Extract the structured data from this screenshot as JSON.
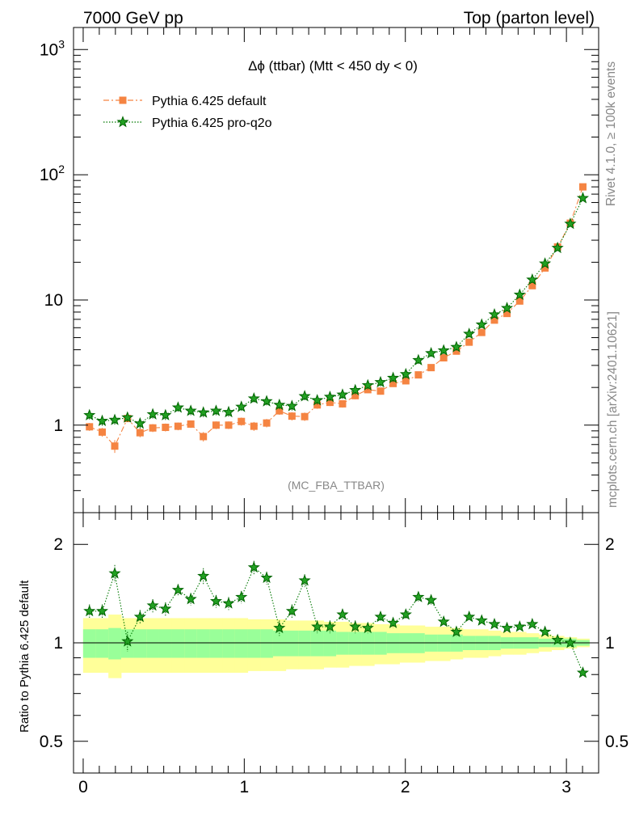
{
  "header": {
    "left": "7000 GeV pp",
    "right": "Top (parton level)"
  },
  "side_labels": {
    "top": "Rivet 4.1.0, ≥ 100k events",
    "bottom": "mcplots.cern.ch [arXiv:2401.10621]"
  },
  "chart_data": [
    {
      "type": "scatter",
      "panel": "main",
      "title": "Δϕ (ttbar) (Mtt < 450 dy < 0)",
      "watermark": "(MC_FBA_TTBAR)",
      "yscale": "log",
      "xlim": [
        -0.06,
        3.2
      ],
      "ylim": [
        0.2,
        1500
      ],
      "yticks": [
        {
          "value": 1000,
          "label": "10",
          "exp": "3"
        },
        {
          "value": 100,
          "label": "10",
          "exp": "2"
        },
        {
          "value": 10,
          "label": "10",
          "exp": ""
        },
        {
          "value": 1,
          "label": "1",
          "exp": ""
        }
      ],
      "legend_position": "top-left",
      "x": [
        0.039,
        0.118,
        0.196,
        0.275,
        0.353,
        0.432,
        0.511,
        0.589,
        0.668,
        0.746,
        0.825,
        0.903,
        0.982,
        1.06,
        1.139,
        1.218,
        1.296,
        1.375,
        1.453,
        1.532,
        1.61,
        1.689,
        1.767,
        1.846,
        1.924,
        2.003,
        2.081,
        2.16,
        2.238,
        2.317,
        2.396,
        2.474,
        2.553,
        2.631,
        2.71,
        2.788,
        2.867,
        2.945,
        3.024,
        3.102
      ],
      "series": [
        {
          "name": "Pythia 6.425 default",
          "color": "#f58442",
          "marker": "square",
          "line": "dash-dot",
          "values": [
            0.97,
            0.88,
            0.68,
            1.13,
            0.87,
            0.95,
            0.96,
            0.98,
            1.02,
            0.81,
            1.0,
            1.0,
            1.07,
            0.98,
            1.04,
            1.3,
            1.18,
            1.17,
            1.45,
            1.52,
            1.48,
            1.72,
            1.92,
            1.87,
            2.15,
            2.26,
            2.52,
            2.88,
            3.45,
            3.9,
            4.6,
            5.5,
            6.9,
            7.8,
            9.8,
            13.0,
            18.0,
            26.5,
            41.0,
            80.0
          ],
          "errors": [
            0.07,
            0.07,
            0.08,
            0.07,
            0.07,
            0.07,
            0.07,
            0.07,
            0.07,
            0.07,
            0.07,
            0.07,
            0.08,
            0.08,
            0.08,
            0.09,
            0.09,
            0.09,
            0.1,
            0.1,
            0.1,
            0.11,
            0.12,
            0.12,
            0.13,
            0.14,
            0.15,
            0.16,
            0.18,
            0.2,
            0.23,
            0.26,
            0.32,
            0.36,
            0.45,
            0.58,
            0.8,
            1.2,
            1.8,
            3.5
          ]
        },
        {
          "name": "Pythia 6.425 pro-q2o",
          "color": "#007800",
          "marker": "star",
          "line": "dotted",
          "values": [
            1.2,
            1.08,
            1.1,
            1.15,
            1.03,
            1.22,
            1.2,
            1.38,
            1.3,
            1.26,
            1.3,
            1.27,
            1.4,
            1.63,
            1.55,
            1.45,
            1.42,
            1.7,
            1.58,
            1.68,
            1.75,
            1.9,
            2.08,
            2.2,
            2.38,
            2.55,
            3.3,
            3.75,
            3.95,
            4.2,
            5.35,
            6.35,
            7.65,
            8.6,
            11.0,
            14.5,
            19.5,
            26.0,
            40.5,
            65.0
          ],
          "errors": [
            0.09,
            0.09,
            0.09,
            0.09,
            0.09,
            0.09,
            0.1,
            0.1,
            0.1,
            0.1,
            0.1,
            0.1,
            0.1,
            0.11,
            0.11,
            0.11,
            0.11,
            0.12,
            0.12,
            0.12,
            0.13,
            0.14,
            0.15,
            0.16,
            0.17,
            0.18,
            0.22,
            0.24,
            0.25,
            0.27,
            0.33,
            0.38,
            0.45,
            0.5,
            0.62,
            0.8,
            1.05,
            1.35,
            2.0,
            3.0
          ]
        }
      ]
    },
    {
      "type": "scatter",
      "panel": "ratio",
      "ylabel": "Ratio to Pythia 6.425 default",
      "yscale": "log",
      "xlim": [
        -0.06,
        3.2
      ],
      "ylim": [
        0.4,
        2.5
      ],
      "yticks": [
        0.5,
        1,
        2
      ],
      "xticks": [
        0,
        1,
        2,
        3
      ],
      "reference_line": 1,
      "band_inner_color": "#99ff99",
      "band_outer_color": "#ffff99",
      "band_inner": [
        0.1,
        0.1,
        0.11,
        0.1,
        0.1,
        0.1,
        0.1,
        0.1,
        0.1,
        0.1,
        0.1,
        0.1,
        0.1,
        0.1,
        0.1,
        0.09,
        0.09,
        0.09,
        0.09,
        0.09,
        0.08,
        0.08,
        0.08,
        0.08,
        0.07,
        0.07,
        0.07,
        0.06,
        0.06,
        0.06,
        0.05,
        0.05,
        0.05,
        0.04,
        0.04,
        0.04,
        0.03,
        0.03,
        0.03,
        0.02
      ],
      "band_outer": [
        0.19,
        0.19,
        0.22,
        0.19,
        0.19,
        0.19,
        0.19,
        0.19,
        0.19,
        0.19,
        0.19,
        0.19,
        0.19,
        0.18,
        0.18,
        0.18,
        0.17,
        0.17,
        0.17,
        0.16,
        0.16,
        0.15,
        0.15,
        0.14,
        0.14,
        0.13,
        0.13,
        0.12,
        0.12,
        0.11,
        0.1,
        0.1,
        0.09,
        0.08,
        0.08,
        0.07,
        0.06,
        0.05,
        0.04,
        0.03
      ],
      "series": [
        {
          "name": "Pythia 6.425 pro-q2o / default",
          "color": "#007800",
          "values": [
            1.25,
            1.25,
            1.63,
            1.01,
            1.2,
            1.3,
            1.27,
            1.45,
            1.36,
            1.6,
            1.34,
            1.32,
            1.38,
            1.7,
            1.58,
            1.11,
            1.25,
            1.55,
            1.12,
            1.12,
            1.22,
            1.12,
            1.11,
            1.2,
            1.15,
            1.22,
            1.38,
            1.35,
            1.16,
            1.08,
            1.2,
            1.17,
            1.14,
            1.11,
            1.12,
            1.14,
            1.08,
            1.02,
            1.0,
            0.81
          ],
          "errors": [
            0.06,
            0.06,
            0.1,
            0.07,
            0.06,
            0.06,
            0.06,
            0.06,
            0.06,
            0.09,
            0.06,
            0.06,
            0.06,
            0.08,
            0.07,
            0.06,
            0.06,
            0.07,
            0.05,
            0.05,
            0.05,
            0.05,
            0.04,
            0.04,
            0.04,
            0.04,
            0.04,
            0.04,
            0.03,
            0.03,
            0.03,
            0.02,
            0.02,
            0.02,
            0.02,
            0.02,
            0.02,
            0.01,
            0.01,
            0.01
          ]
        }
      ]
    }
  ]
}
